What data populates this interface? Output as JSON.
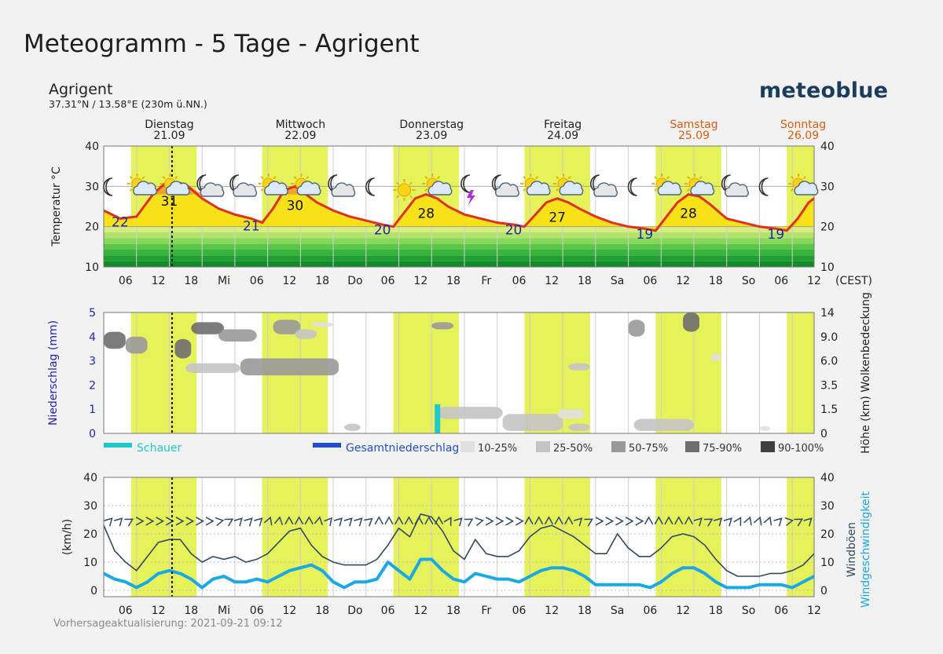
{
  "header": {
    "title": "Meteogramm - 5 Tage - Agrigent",
    "location_name": "Agrigent",
    "coordinates": "37.31°N / 13.58°E (230m ü.NN.)",
    "brand": "meteoblue"
  },
  "footer": {
    "update_text": "Vorhersageaktualisierung: 2021-09-21 09:12"
  },
  "colors": {
    "daytime_band": "#e6f25a",
    "temperature_line": "#e0301e",
    "temperature_fill": "#f7e21a",
    "temperature_max_fill": "#f0a030",
    "precip_axis": "#2222bb",
    "weekend_day": "#e05a10",
    "shower": "#1fc8cc",
    "total_precip": "#2050c8",
    "wind_speed": "#1aa8e8",
    "wind_gusts": "#2f4a60"
  },
  "chart_data": [
    {
      "type": "line",
      "title": "",
      "ylabel": "Temperatur °C",
      "ylim": [
        10,
        40
      ],
      "y_ticks": [
        "10",
        "20",
        "30",
        "40"
      ],
      "days": [
        {
          "name": "Dienstag",
          "date": "21.09",
          "weekend": false
        },
        {
          "name": "Mittwoch",
          "date": "22.09",
          "weekend": false
        },
        {
          "name": "Donnerstag",
          "date": "23.09",
          "weekend": false
        },
        {
          "name": "Freitag",
          "date": "24.09",
          "weekend": false
        },
        {
          "name": "Samstag",
          "date": "25.09",
          "weekend": true
        },
        {
          "name": "Sonntag",
          "date": "26.09",
          "weekend": true
        }
      ],
      "x_ticks": [
        "06",
        "12",
        "18",
        "Mi",
        "06",
        "12",
        "18",
        "Do",
        "06",
        "12",
        "18",
        "Fr",
        "06",
        "12",
        "18",
        "Sa",
        "06",
        "12",
        "18",
        "So",
        "06",
        "12"
      ],
      "x_unit": "(CEST)",
      "x_range_hours": [
        2,
        132
      ],
      "now_hour": 14.5,
      "daytime_bands": [
        [
          7,
          19
        ],
        [
          31,
          43
        ],
        [
          55,
          67
        ],
        [
          79,
          91
        ],
        [
          103,
          115
        ],
        [
          127,
          132
        ]
      ],
      "series": [
        {
          "x": [
            2,
            5,
            8,
            11,
            13,
            15,
            17,
            20,
            23,
            26,
            29,
            31,
            33,
            35,
            37,
            39,
            41,
            44,
            47,
            50,
            53,
            55,
            57,
            59,
            61,
            63,
            65,
            68,
            71,
            74,
            77,
            79,
            81,
            83,
            85,
            87,
            89,
            92,
            95,
            98,
            101,
            103,
            105,
            107,
            109,
            111,
            113,
            116,
            119,
            122,
            125,
            127,
            129,
            131,
            132
          ],
          "y": [
            24,
            22,
            22.5,
            28,
            30.5,
            31,
            30.5,
            27,
            24.5,
            23,
            22,
            21,
            24.5,
            29,
            30,
            28,
            26,
            24,
            22.5,
            21.5,
            20.5,
            20,
            23.5,
            27,
            28,
            27,
            25,
            23,
            22,
            21,
            20.5,
            20,
            23,
            26,
            27,
            26,
            24.5,
            22.5,
            21,
            20,
            19.5,
            19,
            22.5,
            26,
            28,
            27.5,
            25.5,
            22,
            21,
            20,
            19.5,
            19,
            22,
            26,
            27
          ]
        }
      ],
      "data_labels": [
        {
          "x": 5,
          "y": 22,
          "text": "22",
          "kind": "min"
        },
        {
          "x": 14,
          "y": 31,
          "text": "31",
          "kind": "max"
        },
        {
          "x": 29,
          "y": 21,
          "text": "21",
          "kind": "min"
        },
        {
          "x": 37,
          "y": 30,
          "text": "30",
          "kind": "max"
        },
        {
          "x": 53,
          "y": 20,
          "text": "20",
          "kind": "min"
        },
        {
          "x": 61,
          "y": 28,
          "text": "28",
          "kind": "max"
        },
        {
          "x": 77,
          "y": 20,
          "text": "20",
          "kind": "min"
        },
        {
          "x": 85,
          "y": 27,
          "text": "27",
          "kind": "max"
        },
        {
          "x": 101,
          "y": 19,
          "text": "19",
          "kind": "min"
        },
        {
          "x": 109,
          "y": 28,
          "text": "28",
          "kind": "max"
        },
        {
          "x": 125,
          "y": 19,
          "text": "19",
          "kind": "min"
        }
      ],
      "weather_icons": [
        {
          "x": 3,
          "icon": "moon-icon"
        },
        {
          "x": 9,
          "icon": "sun-cloud-icon"
        },
        {
          "x": 15,
          "icon": "sun-cloud-icon"
        },
        {
          "x": 21,
          "icon": "moon-cloud-icon"
        },
        {
          "x": 27,
          "icon": "moon-cloud-icon"
        },
        {
          "x": 33,
          "icon": "sun-cloud-icon"
        },
        {
          "x": 39,
          "icon": "sun-cloud-icon"
        },
        {
          "x": 45,
          "icon": "moon-cloud-icon"
        },
        {
          "x": 51,
          "icon": "moon-icon"
        },
        {
          "x": 57,
          "icon": "sun-icon"
        },
        {
          "x": 63,
          "icon": "sun-cloud-icon"
        },
        {
          "x": 69,
          "icon": "thunder-moon-icon"
        },
        {
          "x": 75,
          "icon": "moon-cloud-icon"
        },
        {
          "x": 81,
          "icon": "sun-cloud-icon"
        },
        {
          "x": 87,
          "icon": "sun-cloud-icon"
        },
        {
          "x": 93,
          "icon": "moon-cloud-icon"
        },
        {
          "x": 99,
          "icon": "moon-icon"
        },
        {
          "x": 105,
          "icon": "sun-cloud-icon"
        },
        {
          "x": 111,
          "icon": "sun-cloud-icon"
        },
        {
          "x": 117,
          "icon": "moon-cloud-icon"
        },
        {
          "x": 123,
          "icon": "moon-icon"
        },
        {
          "x": 130,
          "icon": "sun-cloud-icon"
        }
      ]
    },
    {
      "type": "heatmap",
      "title": "",
      "ylabel_left": "Niederschlag (mm)",
      "ylim_left": [
        0,
        5
      ],
      "y_ticks_left": [
        "0",
        "1",
        "2",
        "3",
        "4",
        "5"
      ],
      "ylabel_right": "Höhe (km) Wolkenbedeckung",
      "y_ticks_right": [
        "0",
        "1.5",
        "3.5",
        "6.0",
        "9.0",
        "14"
      ],
      "x_range_hours": [
        2,
        132
      ],
      "daytime_bands": [
        [
          7,
          19
        ],
        [
          31,
          43
        ],
        [
          55,
          67
        ],
        [
          79,
          91
        ],
        [
          103,
          115
        ],
        [
          127,
          132
        ]
      ],
      "now_hour": 14.5,
      "legend": [
        {
          "label": "Schauer",
          "type": "swatch",
          "color": "#1fc8cc"
        },
        {
          "label": "Gesamtniederschlag",
          "type": "swatch",
          "color": "#2050c8"
        },
        {
          "label": "10-25%",
          "type": "cloud",
          "color": "#e0e0e0"
        },
        {
          "label": "25-50%",
          "type": "cloud",
          "color": "#c4c4c4"
        },
        {
          "label": "50-75%",
          "type": "cloud",
          "color": "#999999"
        },
        {
          "label": "75-90%",
          "type": "cloud",
          "color": "#6e6e6e"
        },
        {
          "label": "90-100%",
          "type": "cloud",
          "color": "#3f3f3f"
        }
      ],
      "precip_bars": [
        {
          "x": 63,
          "value": 1.2,
          "kind": "shower"
        }
      ],
      "cloud_cells": [
        {
          "x0": 2,
          "x1": 6,
          "y0": 3.5,
          "y1": 4.2,
          "cover": "75-90%"
        },
        {
          "x0": 6,
          "x1": 10,
          "y0": 3.3,
          "y1": 4.0,
          "cover": "50-75%"
        },
        {
          "x0": 15,
          "x1": 18,
          "y0": 3.1,
          "y1": 3.9,
          "cover": "75-90%"
        },
        {
          "x0": 18,
          "x1": 24,
          "y0": 4.1,
          "y1": 4.6,
          "cover": "75-90%"
        },
        {
          "x0": 23,
          "x1": 30,
          "y0": 3.8,
          "y1": 4.3,
          "cover": "50-75%"
        },
        {
          "x0": 17,
          "x1": 27,
          "y0": 2.5,
          "y1": 2.9,
          "cover": "25-50%"
        },
        {
          "x0": 27,
          "x1": 45,
          "y0": 2.4,
          "y1": 3.1,
          "cover": "50-75%"
        },
        {
          "x0": 33,
          "x1": 38,
          "y0": 4.1,
          "y1": 4.7,
          "cover": "50-75%"
        },
        {
          "x0": 37,
          "x1": 41,
          "y0": 3.9,
          "y1": 4.3,
          "cover": "25-50%"
        },
        {
          "x0": 40,
          "x1": 44,
          "y0": 4.4,
          "y1": 4.6,
          "cover": "10-25%"
        },
        {
          "x0": 46,
          "x1": 49,
          "y0": 0.1,
          "y1": 0.4,
          "cover": "25-50%"
        },
        {
          "x0": 62,
          "x1": 66,
          "y0": 4.3,
          "y1": 4.6,
          "cover": "50-75%"
        },
        {
          "x0": 63,
          "x1": 75,
          "y0": 0.6,
          "y1": 1.1,
          "cover": "25-50%"
        },
        {
          "x0": 75,
          "x1": 86,
          "y0": 0.1,
          "y1": 0.8,
          "cover": "25-50%"
        },
        {
          "x0": 85,
          "x1": 90,
          "y0": 0.6,
          "y1": 1.0,
          "cover": "10-25%"
        },
        {
          "x0": 87,
          "x1": 91,
          "y0": 0.1,
          "y1": 0.4,
          "cover": "25-50%"
        },
        {
          "x0": 87,
          "x1": 91,
          "y0": 2.6,
          "y1": 2.9,
          "cover": "25-50%"
        },
        {
          "x0": 98,
          "x1": 101,
          "y0": 4.0,
          "y1": 4.7,
          "cover": "50-75%"
        },
        {
          "x0": 108,
          "x1": 111,
          "y0": 4.2,
          "y1": 5.0,
          "cover": "75-90%"
        },
        {
          "x0": 99,
          "x1": 110,
          "y0": 0.1,
          "y1": 0.6,
          "cover": "25-50%"
        },
        {
          "x0": 113,
          "x1": 115,
          "y0": 3.0,
          "y1": 3.3,
          "cover": "10-25%"
        },
        {
          "x0": 122,
          "x1": 124,
          "y0": 0.1,
          "y1": 0.3,
          "cover": "10-25%"
        }
      ]
    },
    {
      "type": "line",
      "title": "",
      "ylabel_left": "(km/h)",
      "ylim": [
        0,
        40
      ],
      "y_ticks": [
        "0",
        "10",
        "20",
        "30",
        "40"
      ],
      "ylabel_right": [
        "Windböen",
        "Windgeschwindigkeit"
      ],
      "x_ticks": [
        "06",
        "12",
        "18",
        "Mi",
        "06",
        "12",
        "18",
        "Do",
        "06",
        "12",
        "18",
        "Fr",
        "06",
        "12",
        "18",
        "Sa",
        "06",
        "12",
        "18",
        "So",
        "06",
        "12"
      ],
      "x_range_hours": [
        2,
        132
      ],
      "daytime_bands": [
        [
          7,
          19
        ],
        [
          31,
          43
        ],
        [
          55,
          67
        ],
        [
          79,
          91
        ],
        [
          103,
          115
        ],
        [
          127,
          132
        ]
      ],
      "now_hour": 14.5,
      "series": [
        {
          "name": "Windböen",
          "x": [
            2,
            4,
            6,
            8,
            10,
            12,
            14,
            16,
            18,
            20,
            22,
            24,
            26,
            28,
            30,
            32,
            34,
            36,
            38,
            40,
            42,
            44,
            46,
            48,
            50,
            52,
            54,
            56,
            58,
            60,
            62,
            64,
            66,
            68,
            70,
            72,
            74,
            76,
            78,
            80,
            82,
            84,
            86,
            88,
            90,
            92,
            94,
            96,
            98,
            100,
            102,
            104,
            106,
            108,
            110,
            112,
            114,
            116,
            118,
            120,
            122,
            124,
            126,
            128,
            130,
            132
          ],
          "y": [
            23,
            14,
            10,
            7,
            12,
            17,
            18,
            18,
            13,
            10,
            12,
            11,
            12,
            10,
            11,
            13,
            17,
            21,
            22,
            16,
            12,
            10,
            9,
            9,
            9,
            11,
            16,
            22,
            19,
            27,
            26,
            21,
            14,
            11,
            18,
            13,
            12,
            12,
            14,
            19,
            22,
            23,
            21,
            19,
            16,
            13,
            13,
            20,
            15,
            12,
            12,
            15,
            19,
            20,
            19,
            16,
            11,
            7,
            5,
            5,
            5,
            6,
            6,
            7,
            9,
            13
          ]
        },
        {
          "name": "Windgeschwindigkeit",
          "x": [
            2,
            4,
            6,
            8,
            10,
            12,
            14,
            16,
            18,
            20,
            22,
            24,
            26,
            28,
            30,
            32,
            34,
            36,
            38,
            40,
            42,
            44,
            46,
            48,
            50,
            52,
            54,
            56,
            58,
            60,
            62,
            64,
            66,
            68,
            70,
            72,
            74,
            76,
            78,
            80,
            82,
            84,
            86,
            88,
            90,
            92,
            94,
            96,
            98,
            100,
            102,
            104,
            106,
            108,
            110,
            112,
            114,
            116,
            118,
            120,
            122,
            124,
            126,
            128,
            130,
            132
          ],
          "y": [
            6,
            4,
            3,
            1,
            3,
            6,
            7,
            6,
            4,
            1,
            4,
            5,
            3,
            3,
            4,
            3,
            5,
            7,
            8,
            9,
            7,
            3,
            1,
            3,
            3,
            4,
            10,
            7,
            4,
            11,
            11,
            7,
            4,
            3,
            6,
            5,
            4,
            4,
            3,
            5,
            7,
            8,
            8,
            7,
            5,
            2,
            2,
            2,
            2,
            2,
            1,
            3,
            6,
            8,
            8,
            6,
            3,
            1,
            1,
            1,
            2,
            2,
            2,
            1,
            3,
            5
          ]
        }
      ],
      "wind_arrows_deg": [
        45,
        45,
        60,
        90,
        90,
        90,
        90,
        90,
        90,
        90,
        90,
        80,
        60,
        45,
        45,
        45,
        20,
        10,
        0,
        0,
        0,
        10,
        40,
        45,
        45,
        45,
        50,
        0,
        0,
        0,
        0,
        0,
        0,
        0,
        30,
        45,
        60,
        80,
        90,
        90,
        90,
        90,
        0,
        0,
        0,
        0,
        0,
        45,
        60,
        90,
        90,
        90,
        90,
        90,
        0,
        0,
        0,
        0,
        0,
        45,
        60,
        45,
        45,
        30,
        20,
        20,
        20,
        45,
        80,
        60,
        45
      ]
    }
  ]
}
